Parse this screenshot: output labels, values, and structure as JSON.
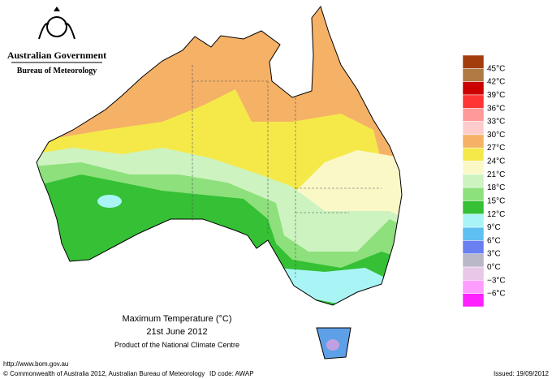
{
  "header": {
    "government": "Australian Government",
    "bureau": "Bureau of Meteorology"
  },
  "legend": {
    "labels": [
      "45°C",
      "42°C",
      "39°C",
      "36°C",
      "33°C",
      "30°C",
      "27°C",
      "24°C",
      "21°C",
      "18°C",
      "15°C",
      "12°C",
      "9°C",
      "6°C",
      "3°C",
      "0°C",
      "−3°C",
      "−6°C"
    ]
  },
  "caption": {
    "title": "Maximum Temperature (°C)",
    "date": "21st June 2012",
    "source": "Product of the National Climate Centre"
  },
  "footer": {
    "url": "http://www.bom.gov.au",
    "copyright": "© Commonwealth of Australia 2012, Australian Bureau of Meteorology",
    "id": "ID code: AWAP",
    "issued": "Issued: 19/09/2012"
  }
}
